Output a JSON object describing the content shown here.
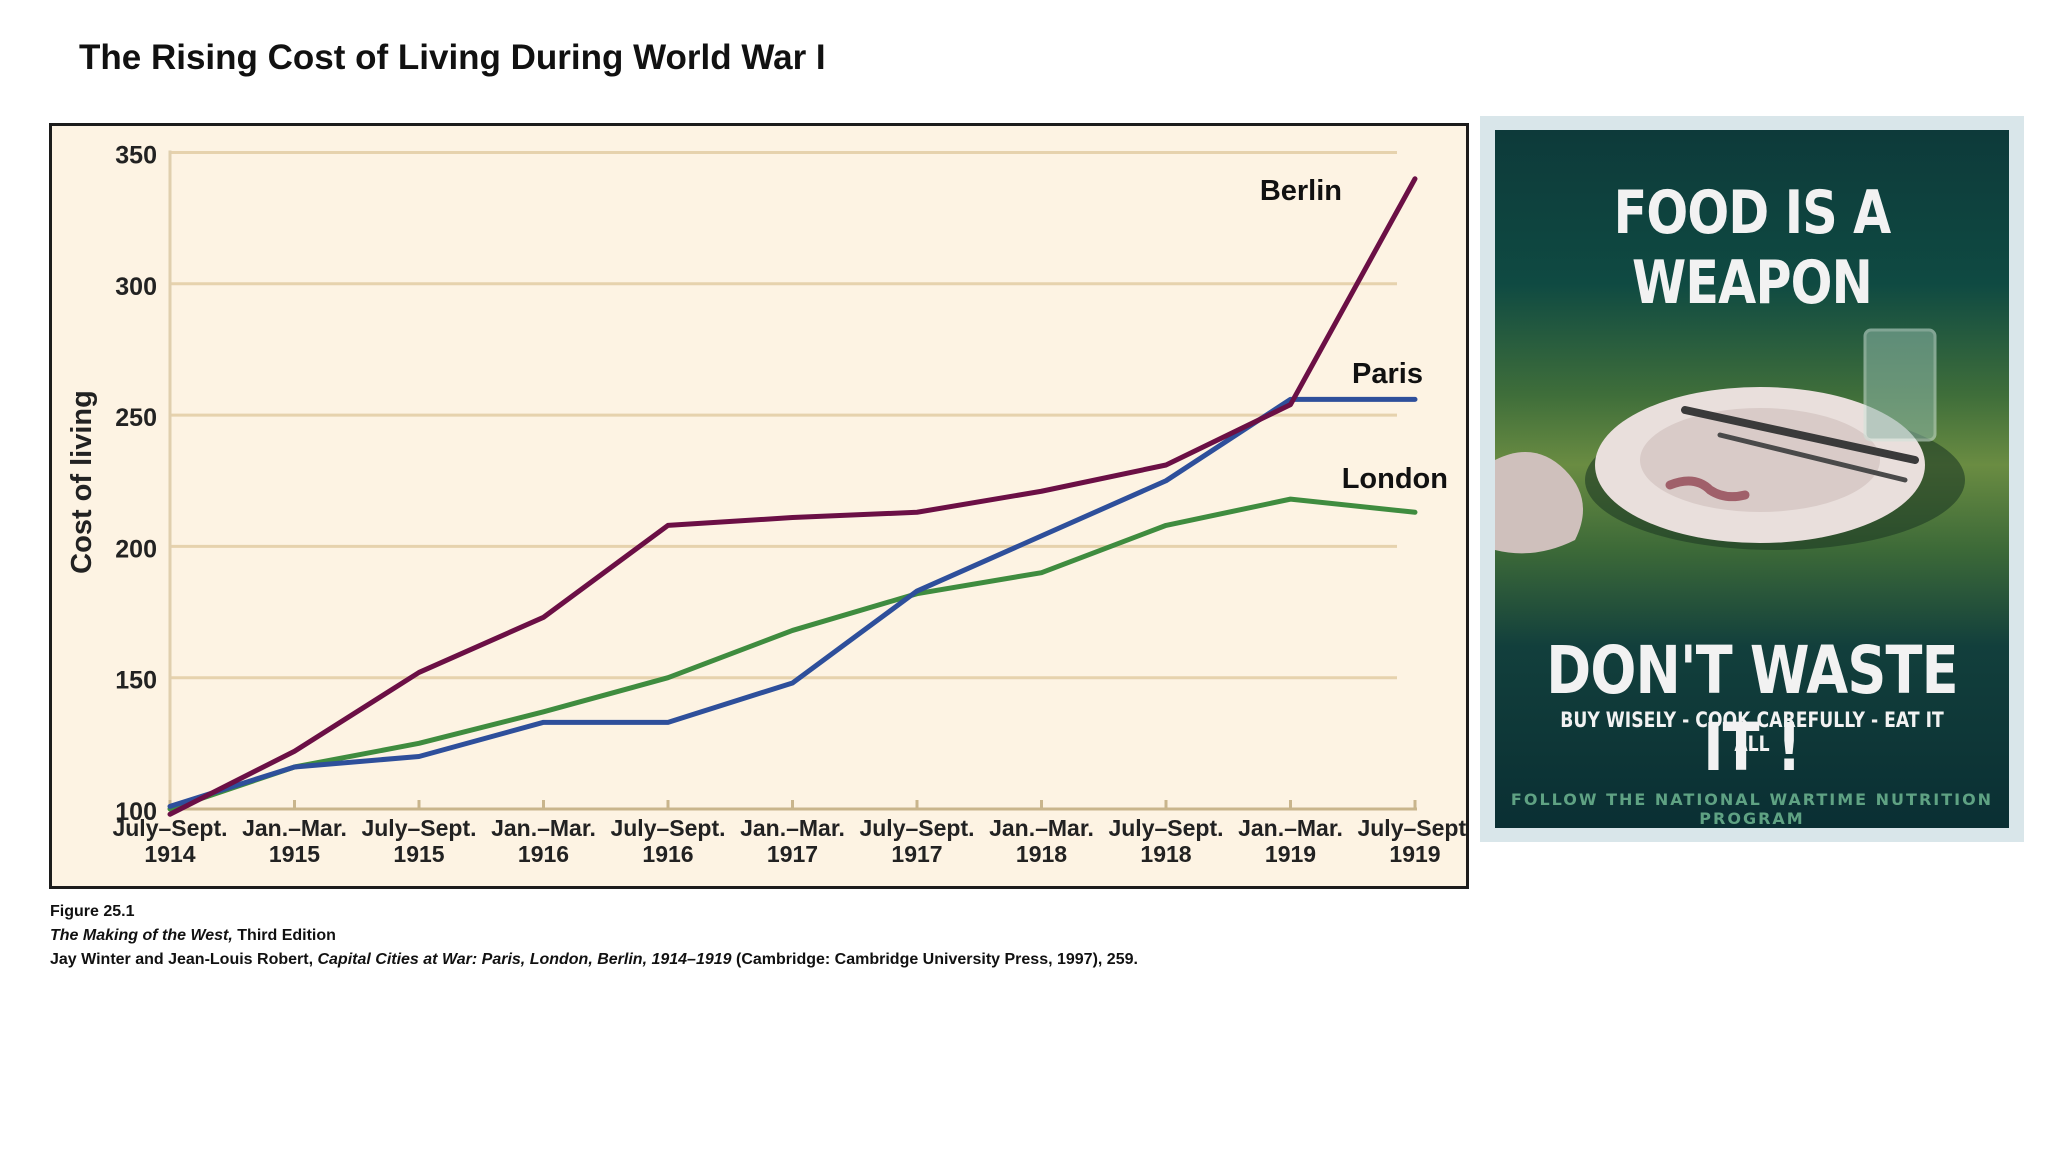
{
  "slide_title": "The Rising Cost of Living During World War I",
  "chart_data": {
    "type": "line",
    "title": "",
    "xlabel": "",
    "ylabel": "Cost of living",
    "ylim": [
      100,
      350
    ],
    "yticks": [
      100,
      150,
      200,
      250,
      300,
      350
    ],
    "grid": true,
    "categories": [
      [
        "July–Sept.",
        "1914"
      ],
      [
        "Jan.–Mar.",
        "1915"
      ],
      [
        "July–Sept.",
        "1915"
      ],
      [
        "Jan.–Mar.",
        "1916"
      ],
      [
        "July–Sept.",
        "1916"
      ],
      [
        "Jan.–Mar.",
        "1917"
      ],
      [
        "July–Sept.",
        "1917"
      ],
      [
        "Jan.–Mar.",
        "1918"
      ],
      [
        "July–Sept.",
        "1918"
      ],
      [
        "Jan.–Mar.",
        "1919"
      ],
      [
        "July–Sept.",
        "1919"
      ]
    ],
    "series": [
      {
        "name": "Berlin",
        "color": "#6b0f45",
        "values": [
          98,
          122,
          152,
          173,
          208,
          211,
          213,
          221,
          231,
          254,
          340
        ]
      },
      {
        "name": "Paris",
        "color": "#2e4f9b",
        "values": [
          101,
          116,
          120,
          133,
          133,
          148,
          183,
          204,
          225,
          256,
          256
        ]
      },
      {
        "name": "London",
        "color": "#3f8c3f",
        "values": [
          100,
          116,
          125,
          137,
          150,
          168,
          182,
          190,
          208,
          218,
          213
        ]
      }
    ]
  },
  "caption": {
    "figure": "Figure 25.1",
    "book_title": "The Making of the West,",
    "book_edition": " Third Edition",
    "source_authors": "Jay Winter and Jean-Louis Robert, ",
    "source_title": "Capital Cities at War: Paris, London, Berlin, 1914–1919",
    "source_rest": " (Cambridge: Cambridge University Press, 1997), 259."
  },
  "poster": {
    "headline": "FOOD IS A WEAPON",
    "slogan": "DON'T WASTE IT !",
    "subline": "BUY WISELY - COOK CAREFULLY - EAT IT ALL",
    "footer": "FOLLOW THE NATIONAL WARTIME NUTRITION PROGRAM",
    "colors": {
      "background": "#0f4a42",
      "text": "#f2f2f2"
    }
  }
}
